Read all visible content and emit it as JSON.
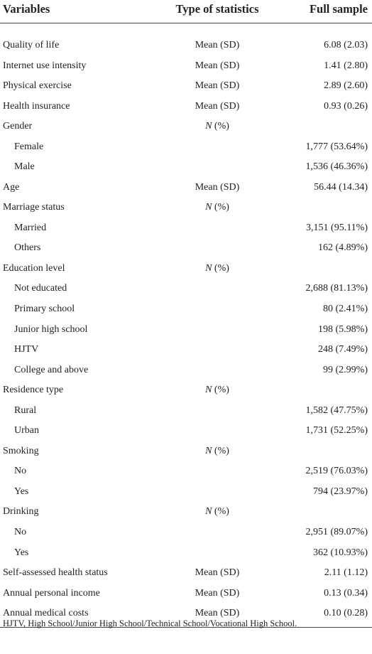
{
  "table": {
    "header": [
      "Variables",
      "Type of statistics",
      "Full sample"
    ],
    "rows": [
      {
        "label": "Quality of life",
        "type": "Mean (SD)",
        "value": "6.08 (2.03)"
      },
      {
        "label": "Internet use intensity",
        "type": "Mean (SD)",
        "value": "1.41 (2.80)"
      },
      {
        "label": "Physical exercise",
        "type": "Mean (SD)",
        "value": "2.89 (2.60)"
      },
      {
        "label": "Health insurance",
        "type": "Mean (SD)",
        "value": "0.93 (0.26)"
      },
      {
        "label": "Gender",
        "type": "N (%)"
      },
      {
        "label": "Female",
        "value": "1,777 (53.64%)"
      },
      {
        "label": "Male",
        "value": "1,536 (46.36%)"
      },
      {
        "label": "Age",
        "type": "Mean (SD)",
        "value": "56.44 (14.34)"
      },
      {
        "label": "Marriage status",
        "type": "N (%)"
      },
      {
        "label": "Married",
        "value": "3,151 (95.11%)"
      },
      {
        "label": "Others",
        "value": "162 (4.89%)"
      },
      {
        "label": "Education level",
        "type": "N (%)"
      },
      {
        "label": "Not educated",
        "value": "2,688 (81.13%)"
      },
      {
        "label": "Primary school",
        "value": "80 (2.41%)"
      },
      {
        "label": "Junior high school",
        "value": "198 (5.98%)"
      },
      {
        "label": "HJTV",
        "value": "248 (7.49%)"
      },
      {
        "label": "College and above",
        "value": "99 (2.99%)"
      },
      {
        "label": "Residence type",
        "type": "N (%)"
      },
      {
        "label": "Rural",
        "value": "1,582 (47.75%)"
      },
      {
        "label": "Urban",
        "value": "1,731 (52.25%)"
      },
      {
        "label": "Smoking",
        "type": "N (%)"
      },
      {
        "label": "No",
        "value": "2,519 (76.03%)"
      },
      {
        "label": "Yes",
        "value": "794 (23.97%)"
      },
      {
        "label": "Drinking",
        "type": "N (%)"
      },
      {
        "label": "No",
        "value": "2,951 (89.07%)"
      },
      {
        "label": "Yes",
        "value": "362 (10.93%)"
      },
      {
        "label": "Self-assessed health status",
        "type": "Mean (SD)",
        "value": "2.11 (1.12)"
      },
      {
        "label": "Annual personal income",
        "type": "Mean (SD)",
        "value": "0.13 (0.34)"
      },
      {
        "label": "Annual medical costs",
        "type": "Mean (SD)",
        "value": "0.10 (0.28)"
      }
    ],
    "footnote": "HJTV, High School/Junior High School/Technical School/Vocational High School."
  }
}
